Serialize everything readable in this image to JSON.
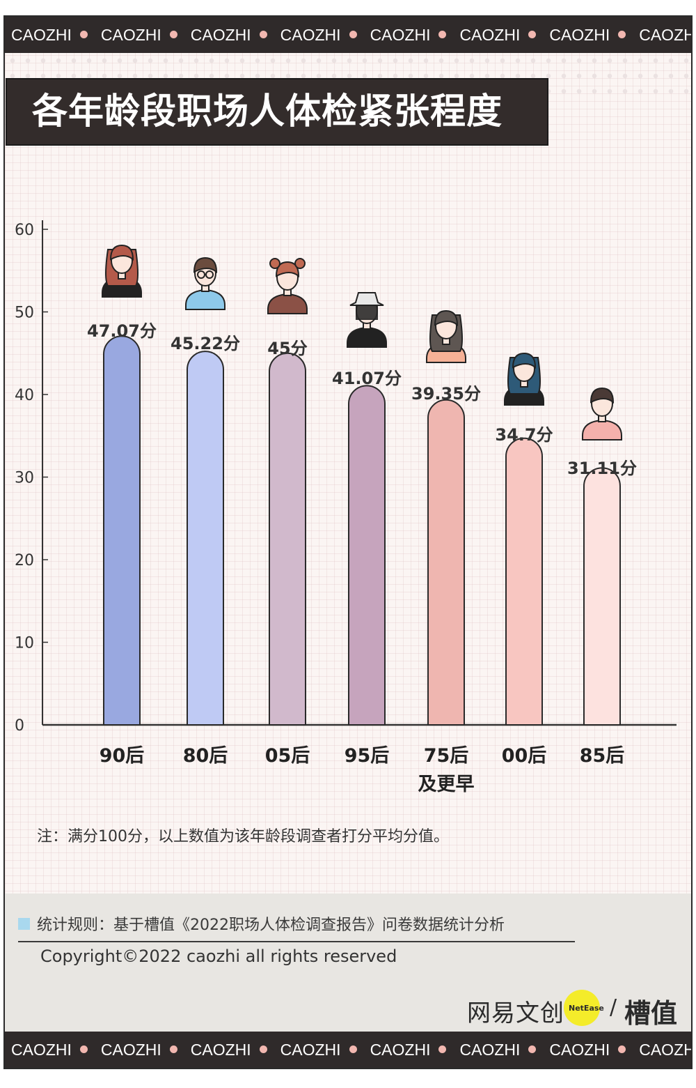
{
  "banner": {
    "items": [
      "CAOZHI",
      "CAOZHI",
      "CAOZHI",
      "CAOZHI",
      "CAOZHI",
      "CAOZHI",
      "CAOZHI",
      "CAOZHI"
    ],
    "dot_color": "#f2b7b0"
  },
  "title": "各年龄段职场人体检紧张程度",
  "chart_data": {
    "type": "bar",
    "title": "各年龄段职场人体检紧张程度",
    "categories": [
      "90后",
      "80后",
      "05后",
      "95后",
      "75后及更早",
      "00后",
      "85后"
    ],
    "values": [
      47.07,
      45.22,
      45,
      41.07,
      39.35,
      34.7,
      31.11
    ],
    "data_labels": [
      "47.07分",
      "45.22分",
      "45分",
      "41.07分",
      "39.35分",
      "34.7分",
      "31.11分"
    ],
    "colors": [
      "#99a8e0",
      "#bfcaf4",
      "#d1b9cc",
      "#c6a4bd",
      "#efb6b0",
      "#f8c6c1",
      "#fde2df"
    ],
    "yticks": [
      "0",
      "10",
      "20",
      "30",
      "40",
      "50",
      "60"
    ],
    "ylim": [
      0,
      60
    ],
    "xlabel": "",
    "ylabel": "",
    "grid": false,
    "legend": "none",
    "icons": [
      "long-hair-woman-icon",
      "glasses-man-icon",
      "double-bun-girl-icon",
      "bucket-hat-person-icon",
      "curly-hair-woman-icon",
      "blue-hair-girl-icon",
      "wavy-hair-woman-icon"
    ]
  },
  "note": "注：满分100分，以上数值为该年龄段调查者打分平均分值。",
  "footer": {
    "rules": "统计规则：基于槽值《2022职场人体检调查报告》问卷数据统计分析",
    "copyright": "Copyright©2022 caozhi all rights reserved",
    "brand_netease": "网易文创",
    "brand_netease_en": "NetEase",
    "brand_slash": "/",
    "brand_caozhi": "槽值"
  }
}
